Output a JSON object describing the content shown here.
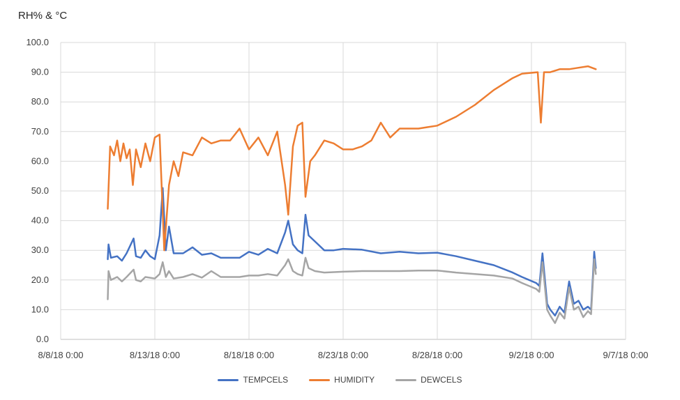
{
  "chart_data": {
    "type": "line",
    "ylabel": "RH% & °C",
    "ylim": [
      0,
      100
    ],
    "yticks": [
      "0.0",
      "10.0",
      "20.0",
      "30.0",
      "40.0",
      "50.0",
      "60.0",
      "70.0",
      "80.0",
      "90.0",
      "100.0"
    ],
    "xlim": [
      "2018-08-08",
      "2018-09-07"
    ],
    "xticks": [
      "8/8/18 0:00",
      "8/13/18 0:00",
      "8/18/18 0:00",
      "8/23/18 0:00",
      "8/28/18 0:00",
      "9/2/18 0:00",
      "9/7/18 0:00"
    ],
    "grid": true,
    "legend_position": "bottom",
    "series": [
      {
        "name": "TEMPCELS",
        "color": "#4472C4",
        "points": [
          [
            "2018-08-10 12:00",
            27
          ],
          [
            "2018-08-10 13:00",
            32
          ],
          [
            "2018-08-10 16:00",
            27.5
          ],
          [
            "2018-08-11 00:00",
            28
          ],
          [
            "2018-08-11 06:00",
            26.5
          ],
          [
            "2018-08-11 12:00",
            29
          ],
          [
            "2018-08-11 21:00",
            34
          ],
          [
            "2018-08-12 00:00",
            28
          ],
          [
            "2018-08-12 06:00",
            27.5
          ],
          [
            "2018-08-12 12:00",
            30
          ],
          [
            "2018-08-12 18:00",
            28
          ],
          [
            "2018-08-13 00:00",
            27
          ],
          [
            "2018-08-13 06:00",
            35
          ],
          [
            "2018-08-13 10:00",
            51
          ],
          [
            "2018-08-13 14:00",
            30
          ],
          [
            "2018-08-13 18:00",
            38
          ],
          [
            "2018-08-14 00:00",
            29
          ],
          [
            "2018-08-14 12:00",
            29
          ],
          [
            "2018-08-15 00:00",
            31
          ],
          [
            "2018-08-15 12:00",
            28.5
          ],
          [
            "2018-08-16 00:00",
            29
          ],
          [
            "2018-08-16 12:00",
            27.5
          ],
          [
            "2018-08-17 00:00",
            27.5
          ],
          [
            "2018-08-17 12:00",
            27.5
          ],
          [
            "2018-08-18 00:00",
            29.5
          ],
          [
            "2018-08-18 12:00",
            28.5
          ],
          [
            "2018-08-19 00:00",
            30.5
          ],
          [
            "2018-08-19 12:00",
            29
          ],
          [
            "2018-08-19 22:00",
            36
          ],
          [
            "2018-08-20 02:00",
            40
          ],
          [
            "2018-08-20 08:00",
            32
          ],
          [
            "2018-08-20 14:00",
            30
          ],
          [
            "2018-08-20 20:00",
            29
          ],
          [
            "2018-08-21 00:00",
            42
          ],
          [
            "2018-08-21 04:00",
            35
          ],
          [
            "2018-08-21 12:00",
            33
          ],
          [
            "2018-08-22 00:00",
            30
          ],
          [
            "2018-08-22 12:00",
            30
          ],
          [
            "2018-08-23 00:00",
            30.5
          ],
          [
            "2018-08-24 00:00",
            30.2
          ],
          [
            "2018-08-25 00:00",
            29
          ],
          [
            "2018-08-26 00:00",
            29.5
          ],
          [
            "2018-08-27 00:00",
            29
          ],
          [
            "2018-08-28 00:00",
            29.2
          ],
          [
            "2018-08-29 00:00",
            28
          ],
          [
            "2018-08-30 00:00",
            26.5
          ],
          [
            "2018-08-31 00:00",
            25
          ],
          [
            "2018-09-01 00:00",
            22.5
          ],
          [
            "2018-09-01 12:00",
            21
          ],
          [
            "2018-09-02 06:00",
            19
          ],
          [
            "2018-09-02 10:00",
            18
          ],
          [
            "2018-09-02 14:00",
            29
          ],
          [
            "2018-09-02 20:00",
            12
          ],
          [
            "2018-09-03 00:00",
            10
          ],
          [
            "2018-09-03 06:00",
            8
          ],
          [
            "2018-09-03 12:00",
            11
          ],
          [
            "2018-09-03 18:00",
            9
          ],
          [
            "2018-09-04 00:00",
            19.5
          ],
          [
            "2018-09-04 06:00",
            12
          ],
          [
            "2018-09-04 12:00",
            13
          ],
          [
            "2018-09-04 18:00",
            10
          ],
          [
            "2018-09-05 00:00",
            11
          ],
          [
            "2018-09-05 04:00",
            10
          ],
          [
            "2018-09-05 08:00",
            29.5
          ],
          [
            "2018-09-05 10:00",
            24
          ]
        ]
      },
      {
        "name": "HUMIDITY",
        "color": "#ED7D31",
        "points": [
          [
            "2018-08-10 12:00",
            44
          ],
          [
            "2018-08-10 15:00",
            65
          ],
          [
            "2018-08-10 20:00",
            62
          ],
          [
            "2018-08-11 00:00",
            67
          ],
          [
            "2018-08-11 04:00",
            60
          ],
          [
            "2018-08-11 08:00",
            66
          ],
          [
            "2018-08-11 12:00",
            61
          ],
          [
            "2018-08-11 16:00",
            64
          ],
          [
            "2018-08-11 20:00",
            52
          ],
          [
            "2018-08-12 00:00",
            64
          ],
          [
            "2018-08-12 06:00",
            58
          ],
          [
            "2018-08-12 12:00",
            66
          ],
          [
            "2018-08-12 18:00",
            60
          ],
          [
            "2018-08-13 00:00",
            68
          ],
          [
            "2018-08-13 06:00",
            69
          ],
          [
            "2018-08-13 12:00",
            30
          ],
          [
            "2018-08-13 18:00",
            52
          ],
          [
            "2018-08-14 00:00",
            60
          ],
          [
            "2018-08-14 06:00",
            55
          ],
          [
            "2018-08-14 12:00",
            63
          ],
          [
            "2018-08-15 00:00",
            62
          ],
          [
            "2018-08-15 12:00",
            68
          ],
          [
            "2018-08-16 00:00",
            66
          ],
          [
            "2018-08-16 12:00",
            67
          ],
          [
            "2018-08-17 00:00",
            67
          ],
          [
            "2018-08-17 12:00",
            71
          ],
          [
            "2018-08-18 00:00",
            64
          ],
          [
            "2018-08-18 12:00",
            68
          ],
          [
            "2018-08-19 00:00",
            62
          ],
          [
            "2018-08-19 12:00",
            70
          ],
          [
            "2018-08-19 22:00",
            52
          ],
          [
            "2018-08-20 02:00",
            42
          ],
          [
            "2018-08-20 08:00",
            65
          ],
          [
            "2018-08-20 14:00",
            72
          ],
          [
            "2018-08-20 20:00",
            73
          ],
          [
            "2018-08-21 00:00",
            48
          ],
          [
            "2018-08-21 06:00",
            60
          ],
          [
            "2018-08-21 12:00",
            62
          ],
          [
            "2018-08-22 00:00",
            67
          ],
          [
            "2018-08-22 12:00",
            66
          ],
          [
            "2018-08-23 00:00",
            64
          ],
          [
            "2018-08-23 12:00",
            64
          ],
          [
            "2018-08-24 00:00",
            65
          ],
          [
            "2018-08-24 12:00",
            67
          ],
          [
            "2018-08-25 00:00",
            73
          ],
          [
            "2018-08-25 12:00",
            68
          ],
          [
            "2018-08-26 00:00",
            71
          ],
          [
            "2018-08-26 12:00",
            71
          ],
          [
            "2018-08-27 00:00",
            71
          ],
          [
            "2018-08-27 12:00",
            71.5
          ],
          [
            "2018-08-28 00:00",
            72
          ],
          [
            "2018-08-29 00:00",
            75
          ],
          [
            "2018-08-30 00:00",
            79
          ],
          [
            "2018-08-31 00:00",
            84
          ],
          [
            "2018-09-01 00:00",
            88
          ],
          [
            "2018-09-01 12:00",
            89.5
          ],
          [
            "2018-09-02 08:00",
            90
          ],
          [
            "2018-09-02 12:00",
            73
          ],
          [
            "2018-09-02 16:00",
            90
          ],
          [
            "2018-09-03 00:00",
            90
          ],
          [
            "2018-09-03 12:00",
            91
          ],
          [
            "2018-09-04 00:00",
            91
          ],
          [
            "2018-09-04 12:00",
            91.5
          ],
          [
            "2018-09-05 00:00",
            92
          ],
          [
            "2018-09-05 10:00",
            91
          ]
        ]
      },
      {
        "name": "DEWCELS",
        "color": "#A5A5A5",
        "points": [
          [
            "2018-08-10 12:00",
            13.5
          ],
          [
            "2018-08-10 13:00",
            23
          ],
          [
            "2018-08-10 16:00",
            20
          ],
          [
            "2018-08-11 00:00",
            21
          ],
          [
            "2018-08-11 06:00",
            19.5
          ],
          [
            "2018-08-11 12:00",
            21
          ],
          [
            "2018-08-11 21:00",
            23.5
          ],
          [
            "2018-08-12 00:00",
            20
          ],
          [
            "2018-08-12 06:00",
            19.5
          ],
          [
            "2018-08-12 12:00",
            21
          ],
          [
            "2018-08-13 00:00",
            20.5
          ],
          [
            "2018-08-13 06:00",
            22
          ],
          [
            "2018-08-13 10:00",
            26
          ],
          [
            "2018-08-13 14:00",
            21
          ],
          [
            "2018-08-13 18:00",
            23
          ],
          [
            "2018-08-14 00:00",
            20.5
          ],
          [
            "2018-08-14 12:00",
            21
          ],
          [
            "2018-08-15 00:00",
            22
          ],
          [
            "2018-08-15 12:00",
            20.8
          ],
          [
            "2018-08-16 00:00",
            23
          ],
          [
            "2018-08-16 12:00",
            21
          ],
          [
            "2018-08-17 00:00",
            21
          ],
          [
            "2018-08-17 12:00",
            21
          ],
          [
            "2018-08-18 00:00",
            21.5
          ],
          [
            "2018-08-18 12:00",
            21.5
          ],
          [
            "2018-08-19 00:00",
            22
          ],
          [
            "2018-08-19 12:00",
            21.5
          ],
          [
            "2018-08-19 22:00",
            25
          ],
          [
            "2018-08-20 02:00",
            27
          ],
          [
            "2018-08-20 08:00",
            23
          ],
          [
            "2018-08-20 14:00",
            22
          ],
          [
            "2018-08-20 20:00",
            21.5
          ],
          [
            "2018-08-21 00:00",
            27.5
          ],
          [
            "2018-08-21 04:00",
            24
          ],
          [
            "2018-08-21 12:00",
            23
          ],
          [
            "2018-08-22 00:00",
            22.5
          ],
          [
            "2018-08-23 00:00",
            22.8
          ],
          [
            "2018-08-24 00:00",
            23
          ],
          [
            "2018-08-25 00:00",
            23
          ],
          [
            "2018-08-26 00:00",
            23
          ],
          [
            "2018-08-27 00:00",
            23.2
          ],
          [
            "2018-08-28 00:00",
            23.2
          ],
          [
            "2018-08-29 00:00",
            22.5
          ],
          [
            "2018-08-30 00:00",
            22
          ],
          [
            "2018-08-31 00:00",
            21.5
          ],
          [
            "2018-09-01 00:00",
            20.5
          ],
          [
            "2018-09-01 12:00",
            19
          ],
          [
            "2018-09-02 06:00",
            17
          ],
          [
            "2018-09-02 10:00",
            16
          ],
          [
            "2018-09-02 14:00",
            26
          ],
          [
            "2018-09-02 20:00",
            10
          ],
          [
            "2018-09-03 00:00",
            8
          ],
          [
            "2018-09-03 06:00",
            5.5
          ],
          [
            "2018-09-03 12:00",
            9
          ],
          [
            "2018-09-03 18:00",
            7
          ],
          [
            "2018-09-04 00:00",
            17.5
          ],
          [
            "2018-09-04 06:00",
            10
          ],
          [
            "2018-09-04 12:00",
            11
          ],
          [
            "2018-09-04 18:00",
            7.5
          ],
          [
            "2018-09-05 00:00",
            9.5
          ],
          [
            "2018-09-05 04:00",
            8.5
          ],
          [
            "2018-09-05 08:00",
            27
          ],
          [
            "2018-09-05 10:00",
            22
          ]
        ]
      }
    ]
  }
}
